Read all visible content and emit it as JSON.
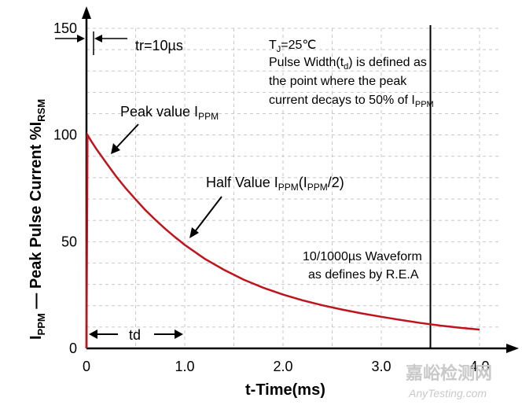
{
  "chart_data": {
    "type": "line",
    "xlabel": "t-Time(ms)",
    "ylabel_main": "I",
    "ylabel_main_sub": "PPM",
    "ylabel_rest": " — Peak Pulse Current  %I",
    "ylabel_rest_sub": "RSM",
    "xlim": [
      0,
      4.0
    ],
    "ylim": [
      0,
      150
    ],
    "x_ticks": [
      "0",
      "1.0",
      "2.0",
      "3.0",
      "4.0"
    ],
    "y_ticks": [
      "0",
      "50",
      "100",
      "150"
    ],
    "x_tick_values": [
      0,
      1.0,
      2.0,
      3.0,
      4.0
    ],
    "y_tick_values": [
      0,
      50,
      100,
      150
    ],
    "curve_color": "#c0141c",
    "series": [
      {
        "name": "10/1000µs Waveform",
        "x": [
          0,
          0.01,
          0.05,
          0.1,
          0.2,
          0.3,
          0.4,
          0.5,
          0.6,
          0.7,
          0.8,
          0.9,
          1.0,
          1.2,
          1.4,
          1.6,
          1.8,
          2.0,
          2.2,
          2.4,
          2.6,
          2.8,
          3.0,
          3.2,
          3.4,
          3.6,
          3.8,
          4.0
        ],
        "y": [
          0,
          100,
          97,
          93.5,
          87,
          80.7,
          75,
          69.8,
          64.8,
          60.3,
          56.1,
          52.2,
          48.5,
          42.1,
          36.8,
          32.2,
          28.4,
          25.2,
          22.5,
          20.2,
          18.2,
          16.4,
          14.8,
          13.3,
          11.9,
          10.7,
          9.7,
          8.8
        ]
      }
    ],
    "annotations": {
      "tr": "tr=10µs",
      "tj_main": "T",
      "tj_sub": "J",
      "tj_rest": "=25℃",
      "pulse_line1": "Pulse Width(t",
      "pulse_line1_sub": "d",
      "pulse_line1_end": ") is defined as",
      "pulse_line2": "the point where the peak",
      "pulse_line3": "current decays to 50% of I",
      "pulse_line3_sub": "PPM",
      "peak_label": "Peak value I",
      "peak_label_sub": "PPM",
      "half_label": "Half Value I",
      "half_label_sub1": "PPM",
      "half_label_mid": "(I",
      "half_label_sub2": "PPM",
      "half_label_end": "/2)",
      "wave_line1": "10/1000µs Waveform",
      "wave_line2": "as defines by R.E.A",
      "td": "td"
    }
  },
  "watermark": {
    "cn": "嘉峪检测网",
    "en": "AnyTesting.com"
  }
}
